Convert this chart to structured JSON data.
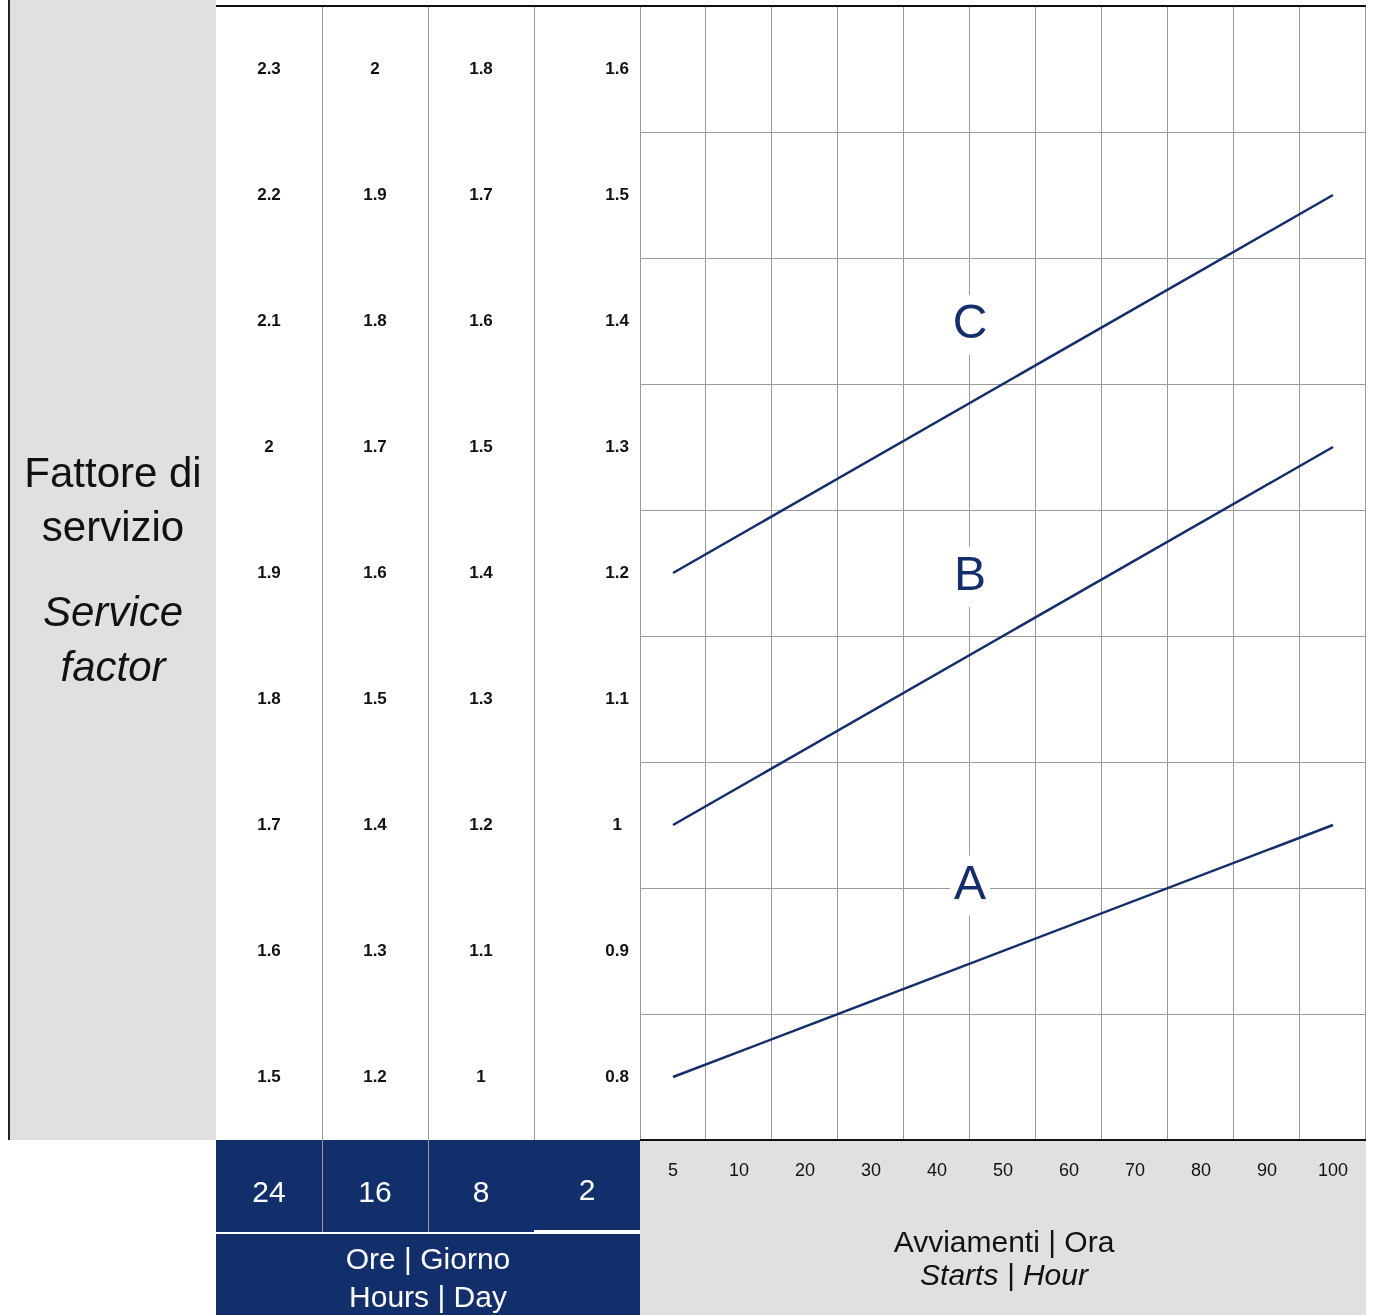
{
  "chart_data": [
    {
      "type": "heatmap",
      "ylabel": "Fattore di servizio\nService factor",
      "xlabel": "Ore | Giorno\nHours | Day",
      "categories": [
        "24",
        "16",
        "8"
      ],
      "y_categories": [
        null,
        null,
        null,
        null,
        null,
        null,
        null,
        null,
        null
      ],
      "cells": [
        [
          2.3,
          2,
          1.8
        ],
        [
          2.2,
          1.9,
          1.7
        ],
        [
          2.1,
          1.8,
          1.6
        ],
        [
          2,
          1.7,
          1.5
        ],
        [
          1.9,
          1.6,
          1.4
        ],
        [
          1.8,
          1.5,
          1.3
        ],
        [
          1.7,
          1.4,
          1.2
        ],
        [
          1.6,
          1.3,
          1.1
        ],
        [
          1.5,
          1.2,
          1
        ]
      ],
      "data_labels": true,
      "grid": "x"
    },
    {
      "type": "line",
      "xlabel": "Avviamenti | Ora\nStarts | Hour",
      "ylabel": "2",
      "categories": [
        "5",
        "10",
        "20",
        "30",
        "40",
        "50",
        "60",
        "70",
        "80",
        "90",
        "100"
      ],
      "series": [
        {
          "name": "A",
          "color": "#142d6b",
          "values": [
            0.8,
            null,
            null,
            null,
            null,
            null,
            null,
            null,
            null,
            null,
            1.0
          ]
        },
        {
          "name": "B",
          "color": "#142d6b",
          "values": [
            1.0,
            null,
            null,
            null,
            null,
            null,
            null,
            null,
            null,
            null,
            1.3
          ]
        },
        {
          "name": "C",
          "color": "#142d6b",
          "values": [
            1.2,
            null,
            null,
            null,
            null,
            null,
            null,
            null,
            null,
            null,
            1.5
          ]
        }
      ],
      "ylim": [
        0.75,
        1.65
      ],
      "yticks": [
        0.8,
        0.9,
        1,
        1.1,
        1.2,
        1.3,
        1.4,
        1.5,
        1.6
      ],
      "grid": true,
      "legend": false,
      "marker": "none",
      "line_style": "solid"
    }
  ]
}
